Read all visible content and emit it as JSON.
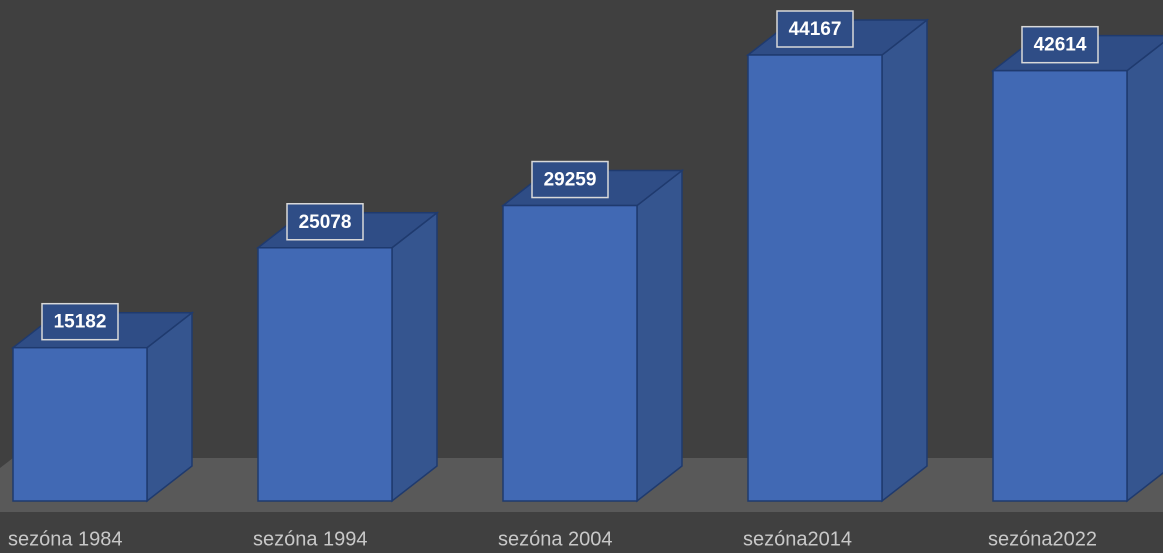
{
  "chart_data": {
    "type": "bar3d",
    "categories": [
      "sezóna 1984",
      "sezóna 1994",
      "sezóna 2004",
      "sezóna2014",
      "sezóna2022"
    ],
    "values": [
      15182,
      25078,
      29259,
      44167,
      42614
    ],
    "color": "#4169b4"
  }
}
